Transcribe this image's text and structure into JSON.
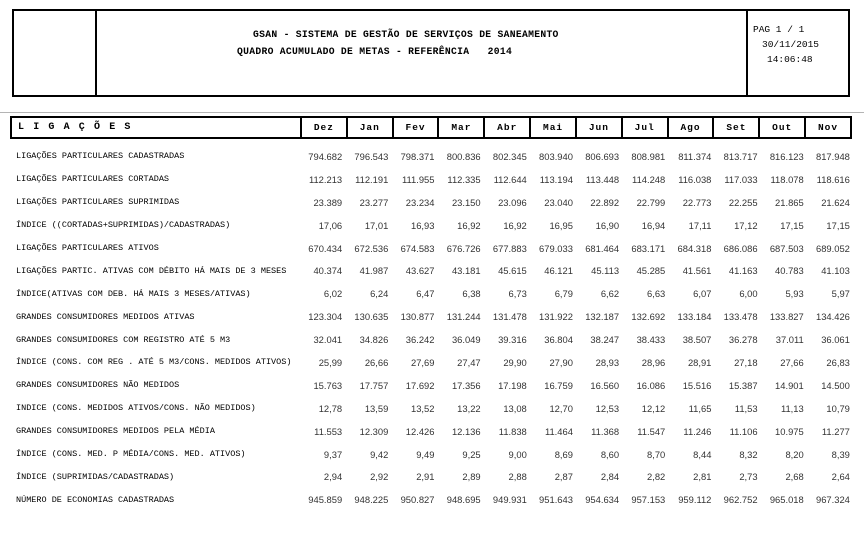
{
  "header": {
    "title_line1": "GSAN - SISTEMA DE GESTÃO DE SERVIÇOS DE SANEAMENTO",
    "title_line2": "QUADRO ACUMULADO DE METAS - REFERÊNCIA   2014",
    "page_label": "PAG 1 / 1",
    "date": "30/11/2015",
    "time": "14:06:48"
  },
  "table": {
    "section_title": "L I G A Ç Õ E S",
    "columns": [
      "Dez",
      "Jan",
      "Fev",
      "Mar",
      "Abr",
      "Mai",
      "Jun",
      "Jul",
      "Ago",
      "Set",
      "Out",
      "Nov"
    ],
    "rows": [
      {
        "label": "LIGAÇÕES PARTICULARES CADASTRADAS",
        "values": [
          "794.682",
          "796.543",
          "798.371",
          "800.836",
          "802.345",
          "803.940",
          "806.693",
          "808.981",
          "811.374",
          "813.717",
          "816.123",
          "817.948"
        ]
      },
      {
        "label": "LIGAÇÕES PARTICULARES CORTADAS",
        "values": [
          "112.213",
          "112.191",
          "111.955",
          "112.335",
          "112.644",
          "113.194",
          "113.448",
          "114.248",
          "116.038",
          "117.033",
          "118.078",
          "118.616"
        ]
      },
      {
        "label": "LIGAÇÕES PARTICULARES SUPRIMIDAS",
        "values": [
          "23.389",
          "23.277",
          "23.234",
          "23.150",
          "23.096",
          "23.040",
          "22.892",
          "22.799",
          "22.773",
          "22.255",
          "21.865",
          "21.624"
        ]
      },
      {
        "label": "ÍNDICE ((CORTADAS+SUPRIMIDAS)/CADASTRADAS)",
        "values": [
          "17,06",
          "17,01",
          "16,93",
          "16,92",
          "16,92",
          "16,95",
          "16,90",
          "16,94",
          "17,11",
          "17,12",
          "17,15",
          "17,15"
        ]
      },
      {
        "label": "LIGAÇÕES PARTICULARES ATIVOS",
        "values": [
          "670.434",
          "672.536",
          "674.583",
          "676.726",
          "677.883",
          "679.033",
          "681.464",
          "683.171",
          "684.318",
          "686.086",
          "687.503",
          "689.052"
        ]
      },
      {
        "label": "LIGAÇÕES PARTIC. ATIVAS COM DÉBITO HÁ MAIS DE 3 MESES",
        "values": [
          "40.374",
          "41.987",
          "43.627",
          "43.181",
          "45.615",
          "46.121",
          "45.113",
          "45.285",
          "41.561",
          "41.163",
          "40.783",
          "41.103"
        ]
      },
      {
        "label": "ÍNDICE(ATIVAS COM DEB. HÁ MAIS 3 MESES/ATIVAS)",
        "values": [
          "6,02",
          "6,24",
          "6,47",
          "6,38",
          "6,73",
          "6,79",
          "6,62",
          "6,63",
          "6,07",
          "6,00",
          "5,93",
          "5,97"
        ]
      },
      {
        "label": "GRANDES CONSUMIDORES MEDIDOS ATIVAS",
        "values": [
          "123.304",
          "130.635",
          "130.877",
          "131.244",
          "131.478",
          "131.922",
          "132.187",
          "132.692",
          "133.184",
          "133.478",
          "133.827",
          "134.426"
        ]
      },
      {
        "label": "GRANDES CONSUMIDORES COM REGISTRO ATÉ 5 M3",
        "values": [
          "32.041",
          "34.826",
          "36.242",
          "36.049",
          "39.316",
          "36.804",
          "38.247",
          "38.433",
          "38.507",
          "36.278",
          "37.011",
          "36.061"
        ]
      },
      {
        "label": "ÍNDICE (CONS. COM REG . ATÉ 5 M3/CONS. MEDIDOS ATIVOS)",
        "values": [
          "25,99",
          "26,66",
          "27,69",
          "27,47",
          "29,90",
          "27,90",
          "28,93",
          "28,96",
          "28,91",
          "27,18",
          "27,66",
          "26,83"
        ]
      },
      {
        "label": "GRANDES CONSUMIDORES NÃO MEDIDOS",
        "values": [
          "15.763",
          "17.757",
          "17.692",
          "17.356",
          "17.198",
          "16.759",
          "16.560",
          "16.086",
          "15.516",
          "15.387",
          "14.901",
          "14.500"
        ]
      },
      {
        "label": "INDICE (CONS. MEDIDOS ATIVOS/CONS. NÃO MEDIDOS)",
        "values": [
          "12,78",
          "13,59",
          "13,52",
          "13,22",
          "13,08",
          "12,70",
          "12,53",
          "12,12",
          "11,65",
          "11,53",
          "11,13",
          "10,79"
        ]
      },
      {
        "label": "GRANDES CONSUMIDORES MEDIDOS PELA MÉDIA",
        "values": [
          "11.553",
          "12.309",
          "12.426",
          "12.136",
          "11.838",
          "11.464",
          "11.368",
          "11.547",
          "11.246",
          "11.106",
          "10.975",
          "11.277"
        ]
      },
      {
        "label": "ÍNDICE (CONS. MED. P MÉDIA/CONS. MED. ATIVOS)",
        "values": [
          "9,37",
          "9,42",
          "9,49",
          "9,25",
          "9,00",
          "8,69",
          "8,60",
          "8,70",
          "8,44",
          "8,32",
          "8,20",
          "8,39"
        ]
      },
      {
        "label": "ÍNDICE (SUPRIMIDAS/CADASTRADAS)",
        "values": [
          "2,94",
          "2,92",
          "2,91",
          "2,89",
          "2,88",
          "2,87",
          "2,84",
          "2,82",
          "2,81",
          "2,73",
          "2,68",
          "2,64"
        ]
      },
      {
        "label": "NÚMERO DE ECONOMIAS CADASTRADAS",
        "values": [
          "945.859",
          "948.225",
          "950.827",
          "948.695",
          "949.931",
          "951.643",
          "954.634",
          "957.153",
          "959.112",
          "962.752",
          "965.018",
          "967.324"
        ]
      }
    ]
  }
}
